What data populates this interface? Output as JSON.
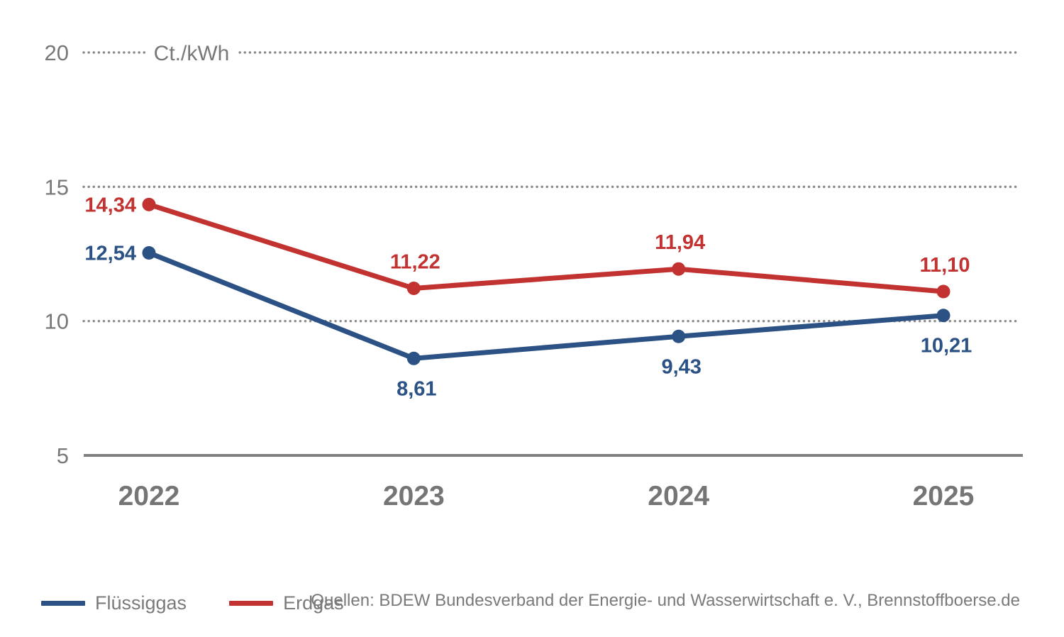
{
  "chart_data": {
    "type": "line",
    "title": "",
    "unit_label": "Ct./kWh",
    "categories": [
      "2022",
      "2023",
      "2024",
      "2025"
    ],
    "series": [
      {
        "name": "Flüssiggas",
        "color": "#2b5185",
        "values": [
          12.54,
          8.61,
          9.43,
          10.21
        ],
        "labels": [
          "12,54",
          "8,61",
          "9,43",
          "10,21"
        ],
        "label_positions": [
          "left",
          "below",
          "below",
          "below"
        ]
      },
      {
        "name": "Erdgas",
        "color": "#c23230",
        "values": [
          14.34,
          11.22,
          11.94,
          11.1
        ],
        "labels": [
          "14,34",
          "11,22",
          "11,94",
          "11,10"
        ],
        "label_positions": [
          "left",
          "above",
          "above",
          "above"
        ]
      }
    ],
    "ylim": [
      5,
      20
    ],
    "yticks": [
      5,
      10,
      15,
      20
    ],
    "grid": "dotted horizontal gridlines, solid baseline axis",
    "legend_position": "bottom-left",
    "axis_colors": {
      "tick_text": "#787878",
      "year_text": "#757575",
      "gridline_dots": "#8a8a8a",
      "baseline_axis": "#808080"
    }
  },
  "legend": {
    "items": [
      {
        "label": "Flüssiggas",
        "color": "#2b5185"
      },
      {
        "label": "Erdgas",
        "color": "#c23230"
      }
    ]
  },
  "source": {
    "text": "Quellen: BDEW Bundesverband der Energie- und Wasserwirtschaft e. V., Brennstoffboerse.de"
  }
}
